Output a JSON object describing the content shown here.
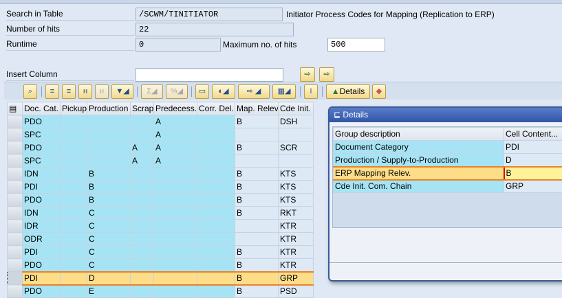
{
  "header": {
    "search_label": "Search in Table",
    "search_value": "/SCWM/TINITIATOR",
    "table_description": "Initiator Process Codes for Mapping (Replication to ERP)",
    "hits_label": "Number of hits",
    "hits_value": "22",
    "runtime_label": "Runtime",
    "runtime_value": "0",
    "max_hits_label": "Maximum no. of hits",
    "max_hits_value": "500",
    "insert_column_label": "Insert Column",
    "insert_column_value": ""
  },
  "toolbar": {
    "details_label": "Details"
  },
  "table": {
    "columns": [
      "Doc. Cat.",
      "Pickup",
      "Production",
      "Scrap",
      "Predecess.",
      "Corr. Del.",
      "Map. Relev",
      "Cde Init."
    ],
    "rows": [
      [
        "PDO",
        "",
        "",
        "",
        "A",
        "",
        "B",
        "DSH"
      ],
      [
        "SPC",
        "",
        "",
        "",
        "A",
        "",
        "",
        ""
      ],
      [
        "PDO",
        "",
        "",
        "A",
        "A",
        "",
        "B",
        "SCR"
      ],
      [
        "SPC",
        "",
        "",
        "A",
        "A",
        "",
        "",
        ""
      ],
      [
        "IDN",
        "",
        "B",
        "",
        "",
        "",
        "B",
        "KTS"
      ],
      [
        "PDI",
        "",
        "B",
        "",
        "",
        "",
        "B",
        "KTS"
      ],
      [
        "PDO",
        "",
        "B",
        "",
        "",
        "",
        "B",
        "KTS"
      ],
      [
        "IDN",
        "",
        "C",
        "",
        "",
        "",
        "B",
        "RKT"
      ],
      [
        "IDR",
        "",
        "C",
        "",
        "",
        "",
        "",
        "KTR"
      ],
      [
        "ODR",
        "",
        "C",
        "",
        "",
        "",
        "",
        "KTR"
      ],
      [
        "PDI",
        "",
        "C",
        "",
        "",
        "",
        "B",
        "KTR"
      ],
      [
        "PDO",
        "",
        "C",
        "",
        "",
        "",
        "B",
        "KTR"
      ],
      [
        "PDI",
        "",
        "D",
        "",
        "",
        "",
        "B",
        "GRP"
      ],
      [
        "PDO",
        "",
        "E",
        "",
        "",
        "",
        "B",
        "PSD"
      ]
    ],
    "selected_row": 12
  },
  "dialog": {
    "title": "Details",
    "col_group": "Group description",
    "col_content": "Cell Content...",
    "rows": [
      {
        "label": "Document Category",
        "value": "PDI"
      },
      {
        "label": "Production / Supply-to-Production",
        "value": "D"
      },
      {
        "label": "ERP Mapping Relev.",
        "value": "B"
      },
      {
        "label": "Cde Init. Com. Chain",
        "value": "GRP"
      }
    ]
  },
  "colors": {
    "key_cell": "#a6e4f5",
    "value_cell": "#dde9f5",
    "highlight": "#fedd88",
    "title_bar": "#2f56a8"
  }
}
